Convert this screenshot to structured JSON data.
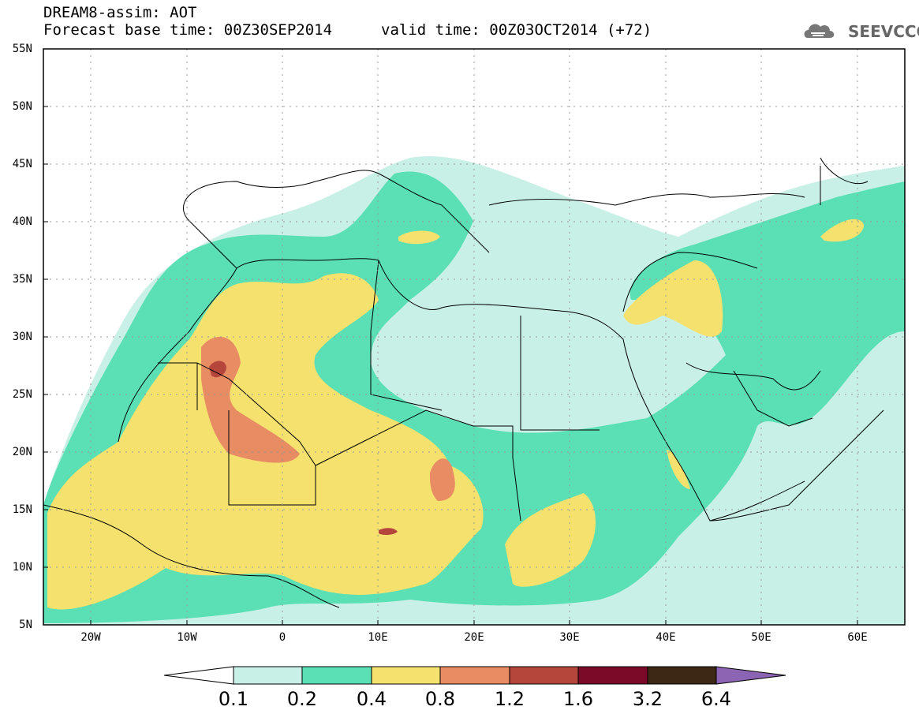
{
  "header": {
    "line1": "DREAM8-assim: AOT",
    "line2": "Forecast base time: 00Z30SEP2014",
    "valid": "valid time: 00Z03OCT2014 (+72)",
    "logo_text": "SEEVCCC"
  },
  "axes": {
    "lat_labels": [
      "55N",
      "50N",
      "45N",
      "40N",
      "35N",
      "30N",
      "25N",
      "20N",
      "15N",
      "10N",
      "5N"
    ],
    "lon_labels": [
      "20W",
      "10W",
      "0",
      "10E",
      "20E",
      "30E",
      "40E",
      "50E",
      "60E"
    ]
  },
  "colorbar": {
    "labels": [
      "0.1",
      "0.2",
      "0.4",
      "0.8",
      "1.2",
      "1.6",
      "3.2",
      "6.4"
    ],
    "colors": [
      "#ffffff",
      "#c8f0e6",
      "#5ae0b4",
      "#f5e16e",
      "#e88c64",
      "#b4463c",
      "#7a0a28",
      "#3c2814",
      "#8c64b4"
    ]
  }
}
